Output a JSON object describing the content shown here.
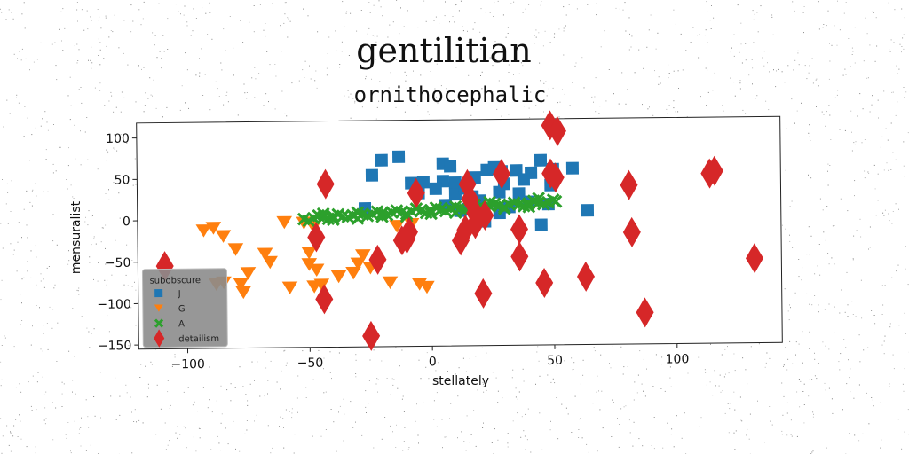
{
  "chart_data": {
    "type": "scatter",
    "title": "gentilitian",
    "subtitle": "ornithocephalic",
    "xlabel": "stellately",
    "ylabel": "mensuralist",
    "xlim": [
      -120,
      143
    ],
    "ylim": [
      -155,
      118
    ],
    "xticks": [
      -100,
      -50,
      0,
      50,
      100
    ],
    "yticks": [
      -150,
      -100,
      -50,
      0,
      50,
      100
    ],
    "grid": false,
    "legend": {
      "title": "subobscure",
      "placement": "bottom-left"
    },
    "series": [
      {
        "name": "J",
        "marker": "square",
        "color": "#1f77b4",
        "points": [
          [
            -24,
            52
          ],
          [
            -20,
            70
          ],
          [
            -13,
            74
          ],
          [
            -8,
            42
          ],
          [
            -3,
            43
          ],
          [
            5,
            44
          ],
          [
            5,
            65
          ],
          [
            8,
            62
          ],
          [
            10,
            42
          ],
          [
            2,
            35
          ],
          [
            10,
            28
          ],
          [
            14,
            35
          ],
          [
            17,
            25
          ],
          [
            20,
            20
          ],
          [
            23,
            57
          ],
          [
            26,
            60
          ],
          [
            29,
            55
          ],
          [
            30,
            40
          ],
          [
            35,
            56
          ],
          [
            36,
            28
          ],
          [
            41,
            53
          ],
          [
            45,
            68
          ],
          [
            50,
            57
          ],
          [
            49,
            38
          ],
          [
            58,
            58
          ],
          [
            64,
            7
          ],
          [
            45,
            -10
          ],
          [
            -27,
            12
          ],
          [
            22,
            -5
          ],
          [
            28,
            5
          ],
          [
            6,
            15
          ],
          [
            15,
            10
          ],
          [
            40,
            18
          ],
          [
            32,
            12
          ],
          [
            48,
            15
          ],
          [
            28,
            30
          ],
          [
            18,
            48
          ],
          [
            -5,
            30
          ],
          [
            12,
            8
          ],
          [
            38,
            45
          ]
        ]
      },
      {
        "name": "G",
        "marker": "triangle-down",
        "color": "#ff7f0e",
        "points": [
          [
            -93,
            -13
          ],
          [
            -89,
            -10
          ],
          [
            -85,
            -20
          ],
          [
            -80,
            -36
          ],
          [
            -85,
            -76
          ],
          [
            -78,
            -78
          ],
          [
            -77,
            -88
          ],
          [
            -75,
            -65
          ],
          [
            -68,
            -42
          ],
          [
            -60,
            -4
          ],
          [
            -58,
            -83
          ],
          [
            -48,
            -10
          ],
          [
            -50,
            -41
          ],
          [
            -50,
            -55
          ],
          [
            -47,
            -62
          ],
          [
            -48,
            -82
          ],
          [
            -45,
            -80
          ],
          [
            -38,
            -70
          ],
          [
            -32,
            -66
          ],
          [
            -30,
            -55
          ],
          [
            -28,
            -45
          ],
          [
            -25,
            -60
          ],
          [
            -17,
            -78
          ],
          [
            -12,
            -32
          ],
          [
            -10,
            -22
          ],
          [
            -8,
            -8
          ],
          [
            -5,
            -80
          ],
          [
            -2,
            -84
          ],
          [
            -52,
            -5
          ],
          [
            -66,
            -52
          ],
          [
            -14,
            -10
          ],
          [
            -88,
            -78
          ]
        ]
      },
      {
        "name": "A",
        "marker": "x",
        "color": "#2ca02c",
        "points": [
          [
            -52,
            0
          ],
          [
            -48,
            1
          ],
          [
            -44,
            2
          ],
          [
            -40,
            3
          ],
          [
            -36,
            3
          ],
          [
            -32,
            4
          ],
          [
            -28,
            5
          ],
          [
            -24,
            5
          ],
          [
            -20,
            6
          ],
          [
            -16,
            7
          ],
          [
            -12,
            7
          ],
          [
            -8,
            8
          ],
          [
            -4,
            9
          ],
          [
            0,
            9
          ],
          [
            4,
            10
          ],
          [
            8,
            11
          ],
          [
            12,
            11
          ],
          [
            16,
            12
          ],
          [
            20,
            13
          ],
          [
            24,
            13
          ],
          [
            28,
            14
          ],
          [
            32,
            15
          ],
          [
            36,
            15
          ],
          [
            40,
            16
          ],
          [
            44,
            17
          ],
          [
            48,
            17
          ],
          [
            51,
            18
          ],
          [
            -50,
            -2
          ],
          [
            -42,
            0
          ],
          [
            -34,
            2
          ],
          [
            -26,
            3
          ],
          [
            -18,
            4
          ],
          [
            -10,
            5
          ],
          [
            -2,
            6
          ],
          [
            6,
            8
          ],
          [
            14,
            9
          ],
          [
            22,
            10
          ],
          [
            30,
            12
          ],
          [
            38,
            13
          ],
          [
            46,
            15
          ],
          [
            -46,
            4
          ],
          [
            -38,
            5
          ],
          [
            -30,
            7
          ],
          [
            -22,
            8
          ],
          [
            -14,
            9
          ],
          [
            -6,
            11
          ],
          [
            2,
            12
          ],
          [
            10,
            13
          ],
          [
            18,
            15
          ],
          [
            26,
            16
          ],
          [
            34,
            17
          ],
          [
            42,
            19
          ],
          [
            50,
            20
          ],
          [
            -40,
            -1
          ],
          [
            -20,
            2
          ],
          [
            0,
            5
          ],
          [
            20,
            8
          ],
          [
            40,
            12
          ],
          [
            -30,
            0
          ],
          [
            10,
            6
          ],
          [
            30,
            10
          ],
          [
            -10,
            2
          ],
          [
            24,
            18
          ],
          [
            -44,
            6
          ],
          [
            44,
            22
          ]
        ]
      },
      {
        "name": "detailism",
        "marker": "diamond",
        "color": "#d62728",
        "points": [
          [
            -109,
            -55
          ],
          [
            -43,
            42
          ],
          [
            -47,
            -22
          ],
          [
            -44,
            -97
          ],
          [
            -25,
            -142
          ],
          [
            -22,
            -50
          ],
          [
            -12,
            -27
          ],
          [
            -9,
            -17
          ],
          [
            -6,
            30
          ],
          [
            12,
            -28
          ],
          [
            14,
            -15
          ],
          [
            15,
            40
          ],
          [
            16,
            22
          ],
          [
            18,
            5
          ],
          [
            21,
            -92
          ],
          [
            29,
            52
          ],
          [
            36,
            -15
          ],
          [
            36,
            -48
          ],
          [
            46,
            -80
          ],
          [
            49,
            110
          ],
          [
            49,
            52
          ],
          [
            52,
            103
          ],
          [
            51,
            47
          ],
          [
            63,
            -73
          ],
          [
            81,
            37
          ],
          [
            82,
            -20
          ],
          [
            87,
            -117
          ],
          [
            114,
            50
          ],
          [
            116,
            53
          ],
          [
            132,
            -53
          ],
          [
            22,
            2
          ],
          [
            18,
            -8
          ],
          [
            -10,
            -25
          ]
        ]
      }
    ]
  }
}
